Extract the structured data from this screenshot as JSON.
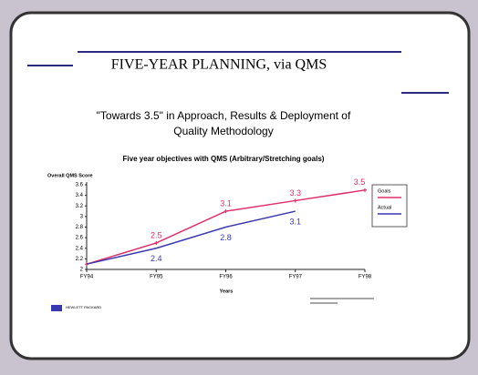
{
  "chart_data": {
    "type": "line",
    "slide_title": "FIVE-YEAR PLANNING, via QMS",
    "subtitle": [
      "\"Towards 3.5\" in Approach, Results & Deployment of",
      "Quality Methodology"
    ],
    "title": "Five year objectives with QMS (Arbitrary/Stretching goals)",
    "ylabel": "Overall QMS Score",
    "xlabel": "Years",
    "logo": "HEWLETT PACKARD",
    "categories": [
      "FY94",
      "FY95",
      "FY96",
      "FY97",
      "FY98"
    ],
    "series": [
      {
        "name": "Goals",
        "color": "#e0306a",
        "values": [
          2.1,
          2.5,
          3.1,
          3.3,
          3.5
        ]
      },
      {
        "name": "Actual",
        "color": "#3838b0",
        "values": [
          2.1,
          2.4,
          2.8,
          3.1,
          null
        ]
      }
    ],
    "ylim": [
      2,
      3.6
    ],
    "yticks": [
      2,
      2.2,
      2.4,
      2.6,
      2.8,
      3,
      3.2,
      3.4,
      3.6
    ],
    "grid": false
  }
}
